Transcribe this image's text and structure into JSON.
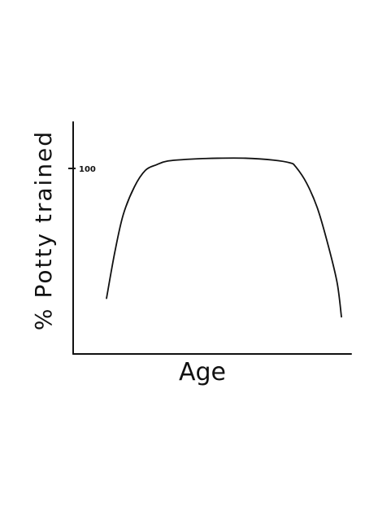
{
  "chart_data": {
    "type": "line",
    "title": "",
    "xlabel": "Age",
    "ylabel": "% Potty trained",
    "yticks": [
      {
        "value": 100,
        "label": "100"
      }
    ],
    "xlim": [
      0,
      100
    ],
    "ylim": [
      0,
      125
    ],
    "grid": false,
    "legend": "none",
    "series": [
      {
        "x": [
          12,
          15,
          18,
          22,
          26,
          30,
          34,
          42,
          52,
          62,
          72,
          78,
          80,
          84,
          88,
          92,
          95,
          96.5
        ],
        "y": [
          30,
          55,
          75,
          90,
          99,
          102,
          104,
          105,
          105.5,
          105.5,
          104.5,
          103,
          101,
          92,
          78,
          57,
          38,
          20
        ]
      }
    ],
    "colors": {
      "line": "#111111",
      "background": "#ffffff"
    }
  }
}
